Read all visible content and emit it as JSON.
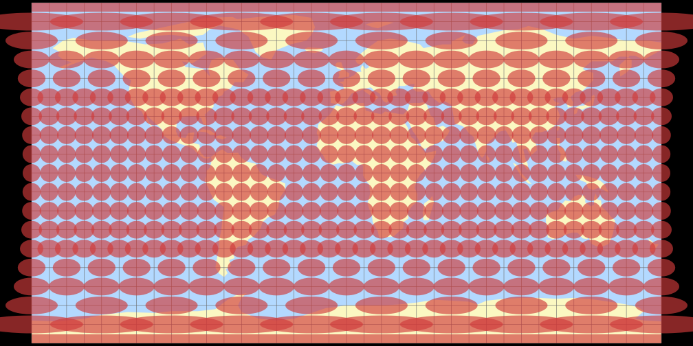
{
  "map": {
    "projection": "equirectangular",
    "graticule_interval_degrees": 10,
    "indicatrix_interval_degrees": 20,
    "latitude_range": [
      -90,
      90
    ],
    "longitude_range": [
      -180,
      180
    ],
    "colors": {
      "background": "#000000",
      "ocean": "#b3d9ff",
      "land": "#fbf8c2",
      "graticule": "#6a6a6a",
      "indicatrix": "#d03a3a",
      "indicatrix_opacity": 0.65
    },
    "landmasses": [
      "north-america",
      "greenland",
      "south-america",
      "europe",
      "africa",
      "asia",
      "arabia",
      "india",
      "australia",
      "antarctica",
      "british-isles",
      "japan",
      "madagascar",
      "new-zealand",
      "indonesia",
      "new-guinea",
      "iceland",
      "svalbard",
      "arctic-islands",
      "sri-lanka",
      "philippines",
      "taiwan",
      "cuba",
      "hispaniola"
    ]
  }
}
